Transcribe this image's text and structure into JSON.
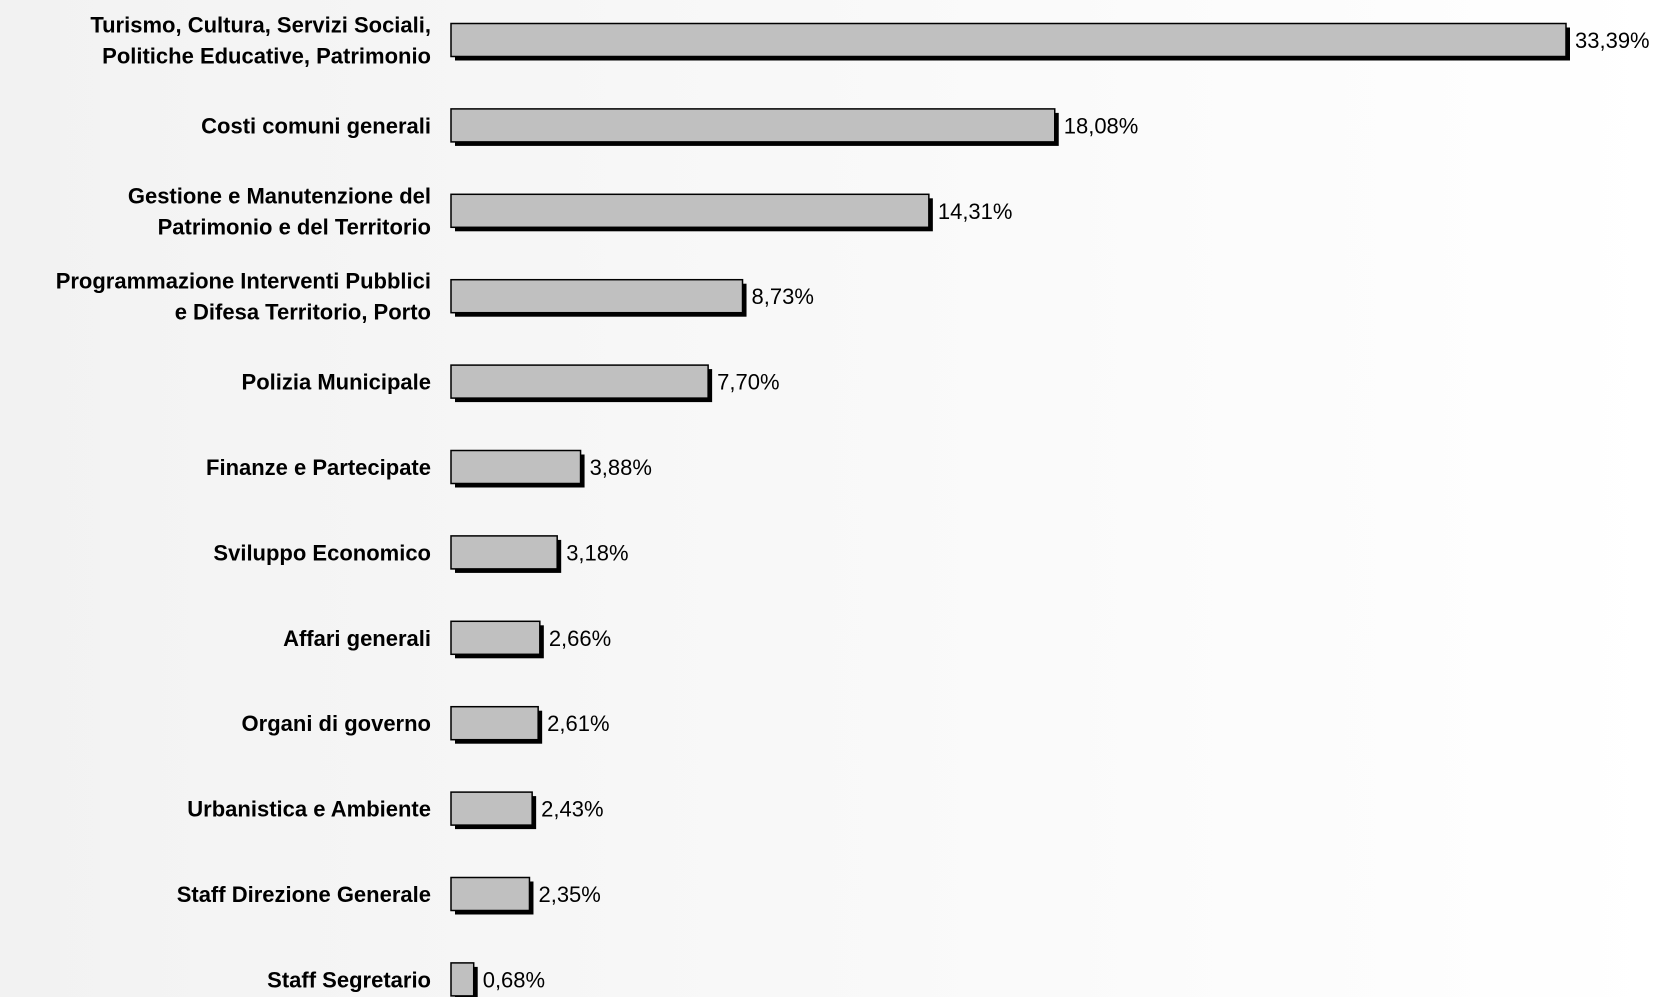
{
  "chart_data": {
    "type": "bar",
    "orientation": "horizontal",
    "title": "",
    "xlabel": "",
    "ylabel": "",
    "categories": [
      [
        "Turismo, Cultura, Servizi Sociali,",
        "Politiche Educative, Patrimonio"
      ],
      [
        "Costi comuni generali"
      ],
      [
        "Gestione e Manutenzione del",
        "Patrimonio e del Territorio"
      ],
      [
        "Programmazione Interventi Pubblici",
        "e Difesa Territorio, Porto"
      ],
      [
        "Polizia Municipale"
      ],
      [
        "Finanze e Partecipate"
      ],
      [
        "Sviluppo Economico"
      ],
      [
        "Affari generali"
      ],
      [
        "Organi di governo"
      ],
      [
        "Urbanistica e Ambiente"
      ],
      [
        "Staff Direzione Generale"
      ],
      [
        "Staff Segretario"
      ]
    ],
    "values": [
      33.39,
      18.08,
      14.31,
      8.73,
      7.7,
      3.88,
      3.18,
      2.66,
      2.61,
      2.43,
      2.35,
      0.68
    ],
    "value_labels": [
      "33,39%",
      "18,08%",
      "14,31%",
      "8,73%",
      "7,70%",
      "3,88%",
      "3,18%",
      "2,66%",
      "2,61%",
      "2,43%",
      "2,35%",
      "0,68%"
    ],
    "xlim": [
      0,
      33.39
    ],
    "grid": false,
    "legend": "none",
    "colors": {
      "bar_fill": "#c0c0c0",
      "bar_stroke": "#000000",
      "bar_shadow": "#000000",
      "plot_bg_left": "#f2f2f2",
      "plot_bg_right": "#ffffff",
      "text": "#000000"
    }
  }
}
